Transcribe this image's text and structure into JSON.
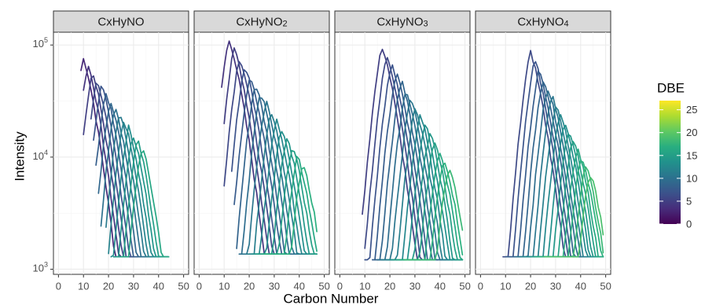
{
  "chart_data": {
    "type": "line",
    "xlabel": "Carbon Number",
    "ylabel": "Intensity",
    "x_ticks": [
      "0",
      "10",
      "20",
      "30",
      "40",
      "50"
    ],
    "xlim": [
      -2,
      52
    ],
    "y_scale": "log",
    "ylim": [
      900,
      130000
    ],
    "y_ticks": [
      {
        "base": "10",
        "exp": "3"
      },
      {
        "base": "10",
        "exp": "4"
      },
      {
        "base": "10",
        "exp": "5"
      }
    ],
    "grid": true,
    "color_scale": "viridis",
    "legend": {
      "title": "DBE",
      "range": [
        0,
        27
      ],
      "ticks": [
        "0",
        "5",
        "10",
        "15",
        "20",
        "25"
      ],
      "placement": "right"
    },
    "panels": [
      {
        "title": "CxHyNO",
        "title_main": "CxHyNO",
        "title_sub": "",
        "first_peak": {
          "c": 10,
          "h": 75000,
          "dbe": 3
        },
        "peak_step": 1.8,
        "n": 14,
        "decay": 0.32,
        "rise": 0.45,
        "last_peak": {
          "c": 34,
          "h": 12000,
          "dbe": 16
        },
        "xmin_start": 9,
        "xend": 44,
        "min_h": 1700
      },
      {
        "title": "CxHyNO2",
        "title_main": "CxHyNO",
        "title_sub": "2",
        "first_peak": {
          "c": 12,
          "h": 110000,
          "dbe": 4
        },
        "peak_step": 2.1,
        "n": 15,
        "decay": 0.3,
        "rise": 0.42,
        "last_peak": {
          "c": 40,
          "h": 8500,
          "dbe": 17
        },
        "xmin_start": 9,
        "xend": 47,
        "min_h": 1800
      },
      {
        "title": "CxHyNO3",
        "title_main": "CxHyNO",
        "title_sub": "3",
        "first_peak": {
          "c": 17,
          "h": 95000,
          "dbe": 5
        },
        "peak_step": 1.9,
        "n": 15,
        "decay": 0.31,
        "rise": 0.4,
        "last_peak": {
          "c": 38,
          "h": 8000,
          "dbe": 18
        },
        "xmin_start": 9,
        "xend": 49,
        "min_h": 1600
      },
      {
        "title": "CxHyNO4",
        "title_main": "CxHyNO",
        "title_sub": "4",
        "first_peak": {
          "c": 20,
          "h": 85000,
          "dbe": 6
        },
        "peak_step": 1.7,
        "n": 15,
        "decay": 0.3,
        "rise": 0.42,
        "last_peak": {
          "c": 40,
          "h": 7000,
          "dbe": 19
        },
        "xmin_start": 9,
        "xend": 49,
        "min_h": 1700
      }
    ]
  }
}
